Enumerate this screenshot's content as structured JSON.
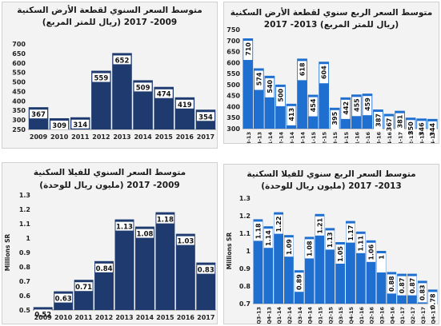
{
  "chart_data": [
    {
      "id": "tl",
      "type": "bar",
      "title": "متوسط السعر السنوي لقطعة الأرض السكنية",
      "subtitle": "(ريال للمتر المربع) 2009- 2017",
      "ylabel": "",
      "categories": [
        "2009",
        "2010",
        "2011",
        "2012",
        "2013",
        "2014",
        "2015",
        "2016",
        "2017"
      ],
      "values": [
        367,
        309,
        314,
        559,
        652,
        509,
        474,
        419,
        354
      ],
      "data_labels": [
        "367",
        "309",
        "314",
        "559",
        "652",
        "509",
        "474",
        "419",
        "354"
      ],
      "ylim": [
        250,
        700
      ],
      "yticks": [
        250,
        300,
        350,
        400,
        450,
        500,
        550,
        600,
        650,
        700
      ],
      "ytick_labels": [
        "250",
        "300",
        "350",
        "400",
        "450",
        "500",
        "550",
        "600",
        "650",
        "700"
      ],
      "bar_color": "#1e3a6e",
      "grid": false
    },
    {
      "id": "tr",
      "type": "bar",
      "title": "متوسط السعر الربع سنوي لقطعة الأرض السكنية",
      "subtitle": "ريال للمتر المربع) 2013- 2017)",
      "ylabel": "",
      "categories": [
        "Q3-13",
        "Q4-13",
        "Q1-14",
        "Q2-14",
        "Q3-14",
        "Q4-14",
        "Q1-15",
        "Q2-15",
        "Q3-15",
        "Q4-15",
        "Q1-16",
        "Q2-16",
        "Q3-16",
        "Q4-16",
        "Q1-17",
        "Q2-17",
        "Q3-17",
        "Q4-17"
      ],
      "values": [
        710,
        574,
        540,
        500,
        413,
        618,
        454,
        604,
        395,
        442,
        455,
        459,
        387,
        367,
        381,
        350,
        346,
        344
      ],
      "data_labels": [
        "710",
        "574",
        "540",
        "500",
        "413",
        "618",
        "454",
        "604",
        "395",
        "442",
        "455",
        "459",
        "387",
        "367",
        "381",
        "350",
        "346",
        "344"
      ],
      "ylim": [
        300,
        750
      ],
      "yticks": [
        300,
        350,
        400,
        450,
        500,
        550,
        600,
        650,
        700,
        750
      ],
      "ytick_labels": [
        "300",
        "350",
        "400",
        "450",
        "500",
        "550",
        "600",
        "650",
        "700",
        "750"
      ],
      "bar_color": "#1f6fd1",
      "grid": false
    },
    {
      "id": "bl",
      "type": "bar",
      "title": "متوسط السعر السنوي للفيلا السكنية",
      "subtitle": "(مليون ريال للوحدة) 2009- 2017",
      "ylabel": "Millions SR",
      "categories": [
        "2009",
        "2010",
        "2011",
        "2012",
        "2013",
        "2014",
        "2015",
        "2016",
        "2017"
      ],
      "values": [
        0.52,
        0.63,
        0.71,
        0.84,
        1.13,
        1.08,
        1.18,
        1.03,
        0.83
      ],
      "data_labels": [
        "0.52",
        "0.63",
        "0.71",
        "0.84",
        "1.13",
        "1.08",
        "1.18",
        "1.03",
        "0.83"
      ],
      "ylim": [
        0.5,
        1.3
      ],
      "yticks": [
        0.5,
        0.6,
        0.7,
        0.8,
        0.9,
        1.0,
        1.1,
        1.2,
        1.3
      ],
      "ytick_labels": [
        "0.5",
        "0.6",
        "0.7",
        "0.8",
        "0.9",
        "1",
        "1.1",
        "1.2",
        "1.3"
      ],
      "bar_color": "#1e3a6e",
      "grid": false
    },
    {
      "id": "br",
      "type": "bar",
      "title": "متوسط السعر الربع سنوي للفيلا السكنية",
      "subtitle": "(مليون ريال للوحدة) 2013- 2017",
      "ylabel": "Millions SR",
      "categories": [
        "Q3-13",
        "Q4-13",
        "Q1-14",
        "Q2-14",
        "Q3-14",
        "Q4-14",
        "Q1-15",
        "Q2-15",
        "Q3-15",
        "Q4-15",
        "Q1-16",
        "Q2-16",
        "Q3-16",
        "Q4-16",
        "Q1-17",
        "Q2-17",
        "Q3-17",
        "Q4-17"
      ],
      "values": [
        1.18,
        1.14,
        1.22,
        1.09,
        0.89,
        1.08,
        1.21,
        1.13,
        1.05,
        1.17,
        1.11,
        1.06,
        1.0,
        0.88,
        0.87,
        0.87,
        0.83,
        0.78
      ],
      "data_labels": [
        "1.18",
        "1.14",
        "1.22",
        "1.09",
        "0.89",
        "1.08",
        "1.21",
        "1.13",
        "1.05",
        "1.17",
        "1.11",
        "1.06",
        "1",
        "0.88",
        "0.87",
        "0.87",
        "0.83",
        "0.78"
      ],
      "ylim": [
        0.7,
        1.3
      ],
      "yticks": [
        0.7,
        0.8,
        0.9,
        1.0,
        1.1,
        1.2,
        1.3
      ],
      "ytick_labels": [
        "0.7",
        "0.8",
        "0.9",
        "1",
        "1.1",
        "1.2",
        "1.3"
      ],
      "bar_color": "#1f6fd1",
      "grid": false
    }
  ]
}
